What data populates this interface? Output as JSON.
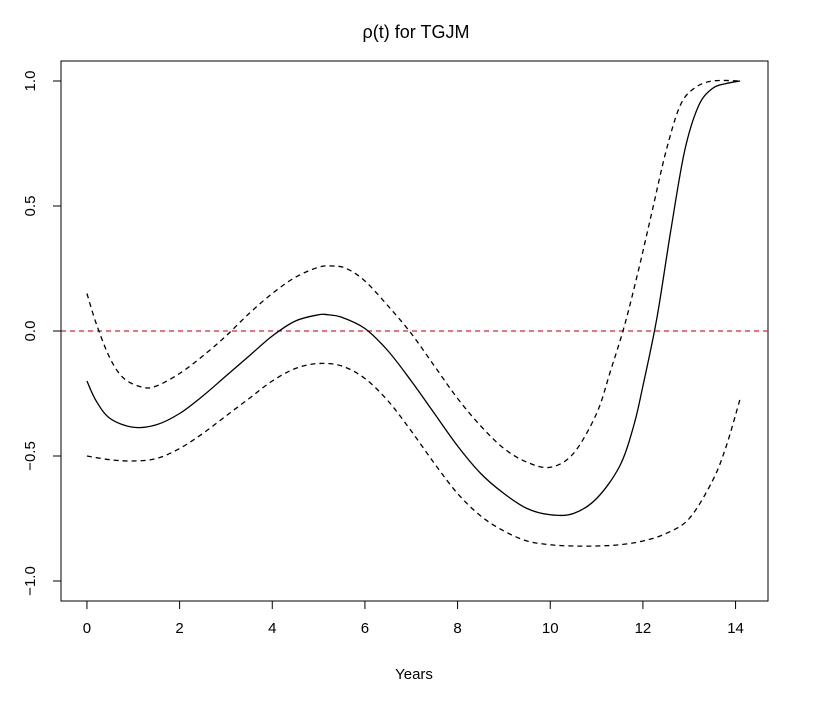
{
  "chart_data": {
    "type": "line",
    "title": "ρ(t) for TGJM",
    "xlabel": "Years",
    "ylabel": "",
    "xlim": [
      -0.56,
      14.7
    ],
    "ylim": [
      -1.08,
      1.08
    ],
    "x_ticks": [
      0,
      2,
      4,
      6,
      8,
      10,
      12,
      14
    ],
    "y_ticks": [
      -1.0,
      -0.5,
      0.0,
      0.5,
      1.0
    ],
    "x_tick_labels": [
      "0",
      "2",
      "4",
      "6",
      "8",
      "10",
      "12",
      "14"
    ],
    "y_tick_labels": [
      "−1.0",
      "−0.5",
      "0.0",
      "0.5",
      "1.0"
    ],
    "grid": false,
    "reference_line": {
      "y": 0.0,
      "color": "#e8202a",
      "style": "dashed"
    },
    "series": [
      {
        "role": "estimate",
        "style": "solid",
        "color": "#000000",
        "x": [
          0,
          0.2,
          0.5,
          1.0,
          1.5,
          2.0,
          2.5,
          3.0,
          3.5,
          4.0,
          4.5,
          5.0,
          5.2,
          5.5,
          6.0,
          6.5,
          7.0,
          7.5,
          8.0,
          8.5,
          9.0,
          9.5,
          10.0,
          10.5,
          11.0,
          11.5,
          11.8,
          12.0,
          12.3,
          12.6,
          12.9,
          13.2,
          13.5,
          13.8,
          14.1
        ],
        "y": [
          -0.2,
          -0.28,
          -0.35,
          -0.385,
          -0.375,
          -0.33,
          -0.26,
          -0.18,
          -0.1,
          -0.02,
          0.04,
          0.065,
          0.065,
          0.055,
          0.01,
          -0.08,
          -0.2,
          -0.33,
          -0.46,
          -0.57,
          -0.65,
          -0.71,
          -0.735,
          -0.73,
          -0.67,
          -0.54,
          -0.38,
          -0.22,
          0.05,
          0.4,
          0.72,
          0.9,
          0.97,
          0.99,
          1.0
        ]
      },
      {
        "role": "upper band",
        "style": "dashed",
        "color": "#000000",
        "x": [
          0,
          0.2,
          0.5,
          0.8,
          1.2,
          1.5,
          2.0,
          2.5,
          3.0,
          3.5,
          4.0,
          4.5,
          5.0,
          5.3,
          5.6,
          6.0,
          6.5,
          7.0,
          7.5,
          8.0,
          8.5,
          9.0,
          9.5,
          10.0,
          10.5,
          11.0,
          11.3,
          11.6,
          11.9,
          12.2,
          12.5,
          12.8,
          13.1,
          13.5,
          14.1
        ],
        "y": [
          0.15,
          0.03,
          -0.11,
          -0.19,
          -0.225,
          -0.22,
          -0.17,
          -0.1,
          -0.02,
          0.07,
          0.15,
          0.215,
          0.255,
          0.26,
          0.25,
          0.2,
          0.1,
          -0.01,
          -0.14,
          -0.27,
          -0.38,
          -0.47,
          -0.525,
          -0.545,
          -0.49,
          -0.33,
          -0.16,
          0.02,
          0.24,
          0.48,
          0.72,
          0.9,
          0.97,
          1.0,
          1.0
        ]
      },
      {
        "role": "lower band",
        "style": "dashed",
        "color": "#000000",
        "x": [
          0,
          0.5,
          1.0,
          1.5,
          2.0,
          2.5,
          3.0,
          3.5,
          4.0,
          4.5,
          5.0,
          5.5,
          6.0,
          6.5,
          7.0,
          7.5,
          8.0,
          8.5,
          9.0,
          9.5,
          10.0,
          10.5,
          11.0,
          11.5,
          12.0,
          12.5,
          13.0,
          13.5,
          13.8,
          14.1
        ],
        "y": [
          -0.5,
          -0.515,
          -0.52,
          -0.51,
          -0.47,
          -0.41,
          -0.34,
          -0.27,
          -0.2,
          -0.15,
          -0.13,
          -0.14,
          -0.19,
          -0.28,
          -0.4,
          -0.53,
          -0.65,
          -0.74,
          -0.8,
          -0.84,
          -0.855,
          -0.86,
          -0.86,
          -0.855,
          -0.84,
          -0.81,
          -0.75,
          -0.6,
          -0.46,
          -0.27
        ]
      }
    ]
  }
}
